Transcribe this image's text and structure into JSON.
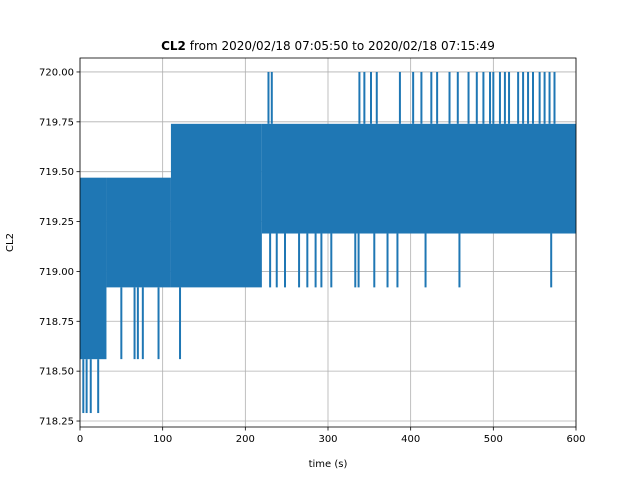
{
  "chart_data": {
    "type": "line",
    "title": {
      "bold_part": "CL2",
      "rest": " from 2020/02/18 07:05:50 to 2020/02/18 07:15:49"
    },
    "xlabel": "time (s)",
    "ylabel": "CL2",
    "xlim": [
      0,
      600
    ],
    "ylim": [
      718.22,
      720.07
    ],
    "xticks": [
      0,
      100,
      200,
      300,
      400,
      500,
      600
    ],
    "yticks": [
      718.25,
      718.5,
      718.75,
      719.0,
      719.25,
      719.5,
      719.75,
      720.0
    ],
    "ytick_labels": [
      "718.25",
      "718.50",
      "718.75",
      "719.00",
      "719.25",
      "719.50",
      "719.75",
      "720.00"
    ],
    "grid": true,
    "series_color": "#1f77b4",
    "band_segments": [
      {
        "x0": 0,
        "x1": 32,
        "lo": 718.56,
        "hi": 719.47
      },
      {
        "x0": 32,
        "x1": 110,
        "lo": 718.92,
        "hi": 719.47
      },
      {
        "x0": 110,
        "x1": 220,
        "lo": 718.92,
        "hi": 719.74
      },
      {
        "x0": 220,
        "x1": 600,
        "lo": 719.19,
        "hi": 719.74
      }
    ],
    "spikes_low": [
      {
        "x": 4,
        "y": 718.29
      },
      {
        "x": 8,
        "y": 718.29
      },
      {
        "x": 13,
        "y": 718.29
      },
      {
        "x": 22,
        "y": 718.29
      },
      {
        "x": 28,
        "y": 718.56
      },
      {
        "x": 50,
        "y": 718.56
      },
      {
        "x": 66,
        "y": 718.56
      },
      {
        "x": 70,
        "y": 718.56
      },
      {
        "x": 76,
        "y": 718.56
      },
      {
        "x": 95,
        "y": 718.56
      },
      {
        "x": 121,
        "y": 718.56
      },
      {
        "x": 230,
        "y": 718.92
      },
      {
        "x": 238,
        "y": 718.92
      },
      {
        "x": 248,
        "y": 718.92
      },
      {
        "x": 265,
        "y": 718.92
      },
      {
        "x": 275,
        "y": 718.92
      },
      {
        "x": 285,
        "y": 718.92
      },
      {
        "x": 292,
        "y": 718.92
      },
      {
        "x": 304,
        "y": 718.92
      },
      {
        "x": 333,
        "y": 718.92
      },
      {
        "x": 337,
        "y": 718.92
      },
      {
        "x": 356,
        "y": 718.92
      },
      {
        "x": 372,
        "y": 718.92
      },
      {
        "x": 384,
        "y": 718.92
      },
      {
        "x": 418,
        "y": 718.92
      },
      {
        "x": 459,
        "y": 718.92
      },
      {
        "x": 570,
        "y": 718.92
      }
    ],
    "spikes_high": [
      {
        "x": 228,
        "y": 720.0
      },
      {
        "x": 232,
        "y": 720.0
      },
      {
        "x": 338,
        "y": 720.0
      },
      {
        "x": 344,
        "y": 720.0
      },
      {
        "x": 352,
        "y": 720.0
      },
      {
        "x": 359,
        "y": 720.0
      },
      {
        "x": 387,
        "y": 720.0
      },
      {
        "x": 403,
        "y": 720.0
      },
      {
        "x": 413,
        "y": 720.0
      },
      {
        "x": 425,
        "y": 720.0
      },
      {
        "x": 432,
        "y": 720.0
      },
      {
        "x": 447,
        "y": 720.0
      },
      {
        "x": 457,
        "y": 720.0
      },
      {
        "x": 470,
        "y": 720.0
      },
      {
        "x": 480,
        "y": 720.0
      },
      {
        "x": 488,
        "y": 720.0
      },
      {
        "x": 496,
        "y": 720.0
      },
      {
        "x": 500,
        "y": 720.0
      },
      {
        "x": 508,
        "y": 720.0
      },
      {
        "x": 514,
        "y": 720.0
      },
      {
        "x": 519,
        "y": 720.0
      },
      {
        "x": 530,
        "y": 720.0
      },
      {
        "x": 536,
        "y": 720.0
      },
      {
        "x": 542,
        "y": 720.0
      },
      {
        "x": 548,
        "y": 720.0
      },
      {
        "x": 556,
        "y": 720.0
      },
      {
        "x": 562,
        "y": 720.0
      },
      {
        "x": 568,
        "y": 720.0
      },
      {
        "x": 574,
        "y": 720.0
      }
    ]
  }
}
